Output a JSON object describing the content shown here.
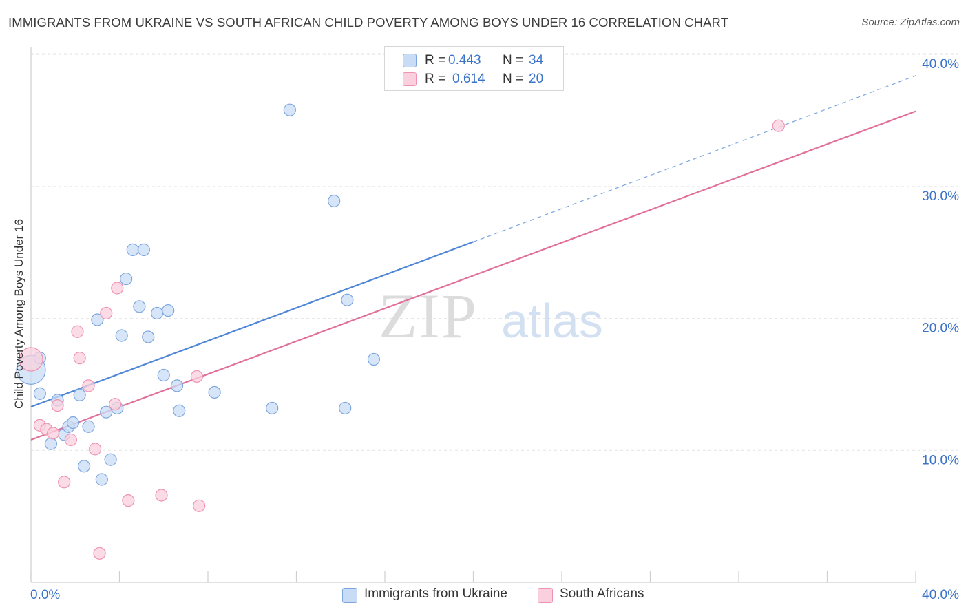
{
  "title": "IMMIGRANTS FROM UKRAINE VS SOUTH AFRICAN CHILD POVERTY AMONG BOYS UNDER 16 CORRELATION CHART",
  "source": "Source: ZipAtlas.com",
  "watermark": {
    "zip": "ZIP",
    "atlas": "atlas"
  },
  "legend": {
    "r_label": "R =",
    "n_label": "N =",
    "items": [
      {
        "r": "0.443",
        "n": "34",
        "color": "#aecbf0",
        "border": "#7ea6de"
      },
      {
        "r": "0.614",
        "n": "20",
        "color": "#f7bfd1",
        "border": "#ee93b1"
      }
    ]
  },
  "chart_data": {
    "type": "scatter",
    "title": "IMMIGRANTS FROM UKRAINE VS SOUTH AFRICAN CHILD POVERTY AMONG BOYS UNDER 16 CORRELATION CHART",
    "xlabel": "",
    "ylabel": "Child Poverty Among Boys Under 16",
    "xlim": [
      0,
      40
    ],
    "ylim": [
      0,
      41
    ],
    "x_tick_labels": [
      "0.0%",
      "40.0%"
    ],
    "y_ticks": [
      10,
      20,
      30,
      40
    ],
    "y_tick_labels": [
      "10.0%",
      "20.0%",
      "30.0%",
      "40.0%"
    ],
    "grid": true,
    "series": [
      {
        "name": "Immigrants from Ukraine",
        "color": "#4f86d6",
        "fill": "#c8dcf5",
        "stroke": "#7ea6de",
        "r_value": 0.443,
        "n": 34,
        "points": [
          [
            0.0,
            16.1,
            3
          ],
          [
            0.4,
            17.0,
            1
          ],
          [
            0.4,
            14.3,
            1
          ],
          [
            1.2,
            13.8,
            1
          ],
          [
            1.5,
            11.2,
            1
          ],
          [
            1.7,
            11.8,
            1
          ],
          [
            0.9,
            10.5,
            1
          ],
          [
            1.9,
            12.1,
            1
          ],
          [
            2.2,
            14.2,
            1
          ],
          [
            2.6,
            11.8,
            1
          ],
          [
            3.0,
            19.9,
            1
          ],
          [
            2.4,
            8.8,
            1
          ],
          [
            3.2,
            7.8,
            1
          ],
          [
            3.4,
            12.9,
            1
          ],
          [
            3.6,
            9.3,
            1
          ],
          [
            3.9,
            13.2,
            1
          ],
          [
            4.1,
            18.7,
            1
          ],
          [
            4.3,
            23.0,
            1
          ],
          [
            4.6,
            25.2,
            1
          ],
          [
            5.1,
            25.2,
            1
          ],
          [
            4.9,
            20.9,
            1
          ],
          [
            5.3,
            18.6,
            1
          ],
          [
            5.7,
            20.4,
            1
          ],
          [
            6.0,
            15.7,
            1
          ],
          [
            6.2,
            20.6,
            1
          ],
          [
            6.6,
            14.9,
            1
          ],
          [
            6.7,
            13.0,
            1
          ],
          [
            8.3,
            14.4,
            1
          ],
          [
            10.9,
            13.2,
            1
          ],
          [
            11.7,
            35.8,
            1
          ],
          [
            13.7,
            28.9,
            1
          ],
          [
            14.2,
            13.2,
            1
          ],
          [
            14.3,
            21.4,
            1
          ],
          [
            15.5,
            16.9,
            1
          ]
        ],
        "trendline": {
          "x1": 0,
          "y1": 13.3,
          "x2": 20,
          "y2": 25.8,
          "dashed_to_x": 40,
          "dashed_to_y": 38.4
        }
      },
      {
        "name": "South Africans",
        "color": "#e0709a",
        "fill": "#fad0de",
        "stroke": "#ee93b1",
        "r_value": 0.614,
        "n": 20,
        "points": [
          [
            0.0,
            16.9,
            2
          ],
          [
            0.4,
            11.9,
            1
          ],
          [
            0.7,
            11.6,
            1
          ],
          [
            1.0,
            11.3,
            1
          ],
          [
            1.2,
            13.4,
            1
          ],
          [
            1.5,
            7.6,
            1
          ],
          [
            1.8,
            10.8,
            1
          ],
          [
            2.1,
            19.0,
            1
          ],
          [
            2.2,
            17.0,
            1
          ],
          [
            2.6,
            14.9,
            1
          ],
          [
            2.9,
            10.1,
            1
          ],
          [
            3.1,
            2.2,
            1
          ],
          [
            3.4,
            20.4,
            1
          ],
          [
            3.8,
            13.5,
            1
          ],
          [
            3.9,
            22.3,
            1
          ],
          [
            4.4,
            6.2,
            1
          ],
          [
            5.9,
            6.6,
            1
          ],
          [
            7.5,
            15.6,
            1
          ],
          [
            7.6,
            5.8,
            1
          ],
          [
            33.8,
            34.6,
            1
          ]
        ],
        "trendline": {
          "x1": 0,
          "y1": 10.8,
          "x2": 40,
          "y2": 35.7
        }
      }
    ]
  }
}
